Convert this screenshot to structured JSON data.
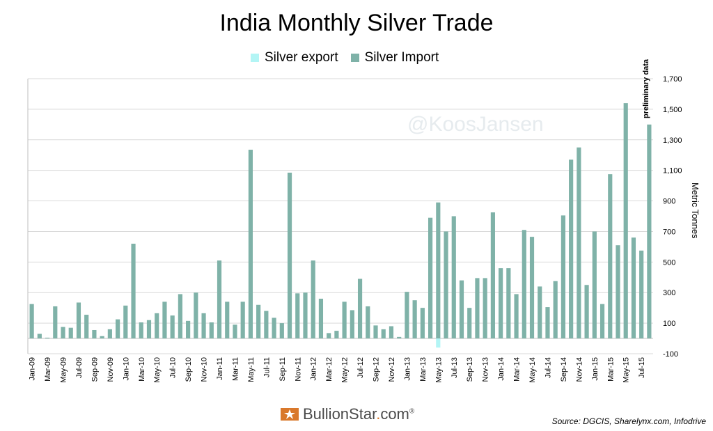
{
  "chart_data": {
    "type": "bar",
    "title": "India Monthly Silver Trade",
    "ylabel": "Metric Tonnes",
    "ylim": [
      -100,
      1700
    ],
    "yticks": [
      "-100",
      "100",
      "300",
      "500",
      "700",
      "900",
      "1,100",
      "1,300",
      "1,500",
      "1,700"
    ],
    "ytick_values": [
      -100,
      100,
      300,
      500,
      700,
      900,
      1100,
      1300,
      1500,
      1700
    ],
    "categories": [
      "Jan-09",
      "Feb-09",
      "Mar-09",
      "Apr-09",
      "May-09",
      "Jun-09",
      "Jul-09",
      "Aug-09",
      "Sep-09",
      "Oct-09",
      "Nov-09",
      "Dec-09",
      "Jan-10",
      "Feb-10",
      "Mar-10",
      "Apr-10",
      "May-10",
      "Jun-10",
      "Jul-10",
      "Aug-10",
      "Sep-10",
      "Oct-10",
      "Nov-10",
      "Dec-10",
      "Jan-11",
      "Feb-11",
      "Mar-11",
      "Apr-11",
      "May-11",
      "Jun-11",
      "Jul-11",
      "Aug-11",
      "Sep-11",
      "Oct-11",
      "Nov-11",
      "Dec-11",
      "Jan-12",
      "Feb-12",
      "Mar-12",
      "Apr-12",
      "May-12",
      "Jun-12",
      "Jul-12",
      "Aug-12",
      "Sep-12",
      "Oct-12",
      "Nov-12",
      "Dec-12",
      "Jan-13",
      "Feb-13",
      "Mar-13",
      "Apr-13",
      "May-13",
      "Jun-13",
      "Jul-13",
      "Aug-13",
      "Sep-13",
      "Oct-13",
      "Nov-13",
      "Dec-13",
      "Jan-14",
      "Feb-14",
      "Mar-14",
      "Apr-14",
      "May-14",
      "Jun-14",
      "Jul-14",
      "Aug-14",
      "Sep-14",
      "Oct-14",
      "Nov-14",
      "Dec-14",
      "Jan-15",
      "Feb-15",
      "Mar-15",
      "Apr-15",
      "May-15",
      "Jun-15",
      "Jul-15",
      "Aug-15"
    ],
    "xtick_labels": [
      "Jan-09",
      "Mar-09",
      "May-09",
      "Jul-09",
      "Sep-09",
      "Nov-09",
      "Jan-10",
      "Mar-10",
      "May-10",
      "Jul-10",
      "Sep-10",
      "Nov-10",
      "Jan-11",
      "Mar-11",
      "May-11",
      "Jul-11",
      "Sep-11",
      "Nov-11",
      "Jan-12",
      "Mar-12",
      "May-12",
      "Jul-12",
      "Sep-12",
      "Nov-12",
      "Jan-13",
      "Mar-13",
      "May-13",
      "Jul-13",
      "Sep-13",
      "Nov-13",
      "Jan-14",
      "Mar-14",
      "May-14",
      "Jul-14",
      "Sep-14",
      "Nov-14",
      "Jan-15",
      "Mar-15",
      "May-15",
      "Jul-15"
    ],
    "series": [
      {
        "name": "Silver export",
        "color": "#b3f5f5",
        "values": [
          0,
          0,
          0,
          0,
          0,
          0,
          0,
          0,
          0,
          0,
          0,
          0,
          0,
          0,
          0,
          0,
          0,
          0,
          0,
          0,
          0,
          0,
          0,
          0,
          0,
          0,
          0,
          0,
          0,
          0,
          0,
          0,
          0,
          0,
          0,
          0,
          0,
          0,
          0,
          0,
          0,
          0,
          0,
          0,
          0,
          0,
          0,
          0,
          0,
          0,
          0,
          0,
          -60,
          0,
          0,
          0,
          0,
          0,
          0,
          0,
          0,
          0,
          0,
          0,
          0,
          0,
          0,
          0,
          0,
          0,
          0,
          0,
          0,
          0,
          0,
          0,
          0,
          0,
          0,
          0
        ]
      },
      {
        "name": "Silver Import",
        "color": "#7fb2a8",
        "values": [
          225,
          30,
          5,
          210,
          75,
          70,
          235,
          155,
          55,
          15,
          60,
          125,
          215,
          620,
          105,
          120,
          165,
          240,
          150,
          290,
          115,
          300,
          165,
          105,
          510,
          240,
          90,
          240,
          1235,
          220,
          180,
          135,
          100,
          1085,
          295,
          300,
          510,
          260,
          35,
          50,
          240,
          185,
          390,
          210,
          85,
          60,
          80,
          10,
          305,
          250,
          200,
          790,
          890,
          700,
          800,
          380,
          200,
          395,
          395,
          825,
          460,
          460,
          290,
          710,
          665,
          340,
          205,
          375,
          805,
          1170,
          1250,
          350,
          700,
          225,
          1075,
          610,
          1540,
          660,
          575,
          1400
        ]
      }
    ]
  },
  "legend": {
    "export_label": "Silver export",
    "import_label": "Silver Import"
  },
  "watermark": "@KoosJansen",
  "annotation": "preliminary data",
  "source": "Source: DGCIS, Sharelynx.com, Infodrive",
  "logo": {
    "name": "BullionStar",
    "dot": ".",
    "suffix": "com",
    "reg": "®"
  }
}
